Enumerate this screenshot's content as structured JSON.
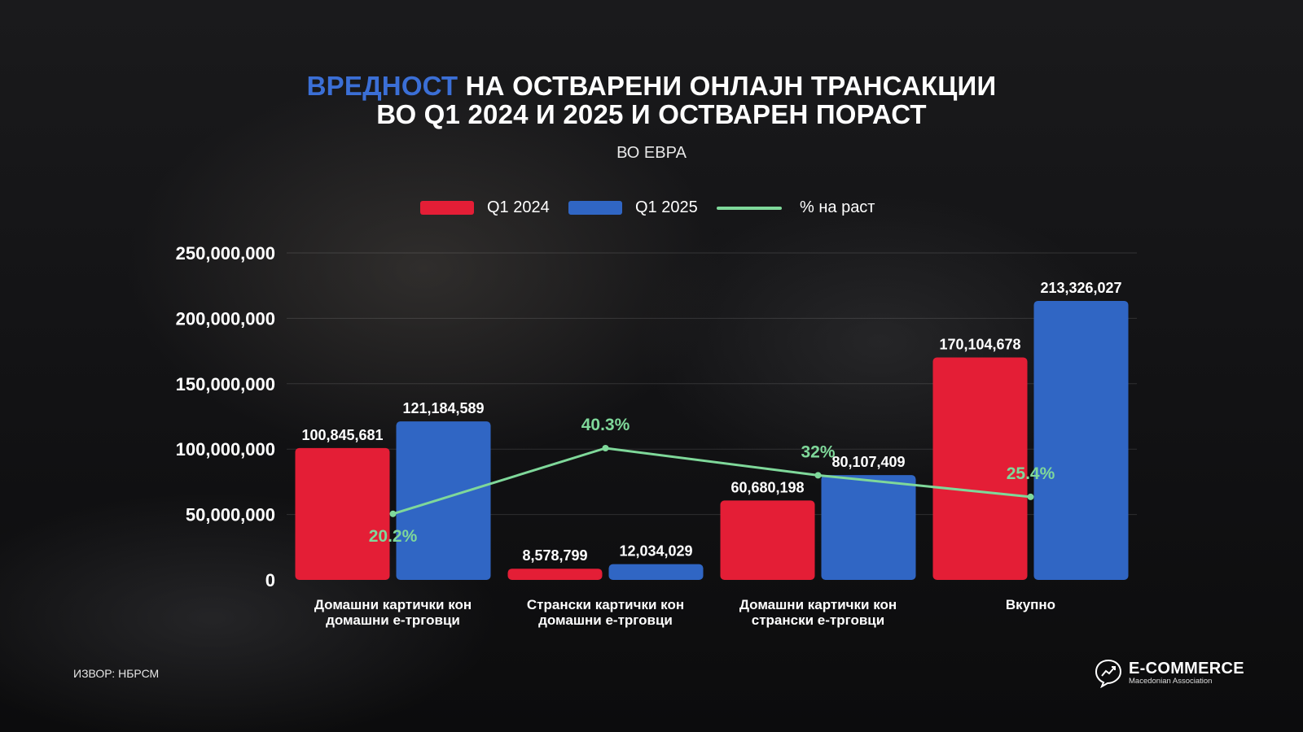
{
  "title": {
    "accent": "ВРЕДНОСТ",
    "line1_rest": " НА ОСТВАРЕНИ ОНЛАЈН ТРАНСАКЦИИ",
    "line2": "ВО Q1 2024 И 2025 И ОСТВАРЕН ПОРАСТ"
  },
  "subtitle": "ВО ЕВРА",
  "source": "ИЗВОР: НБРСМ",
  "logo": {
    "title": "E-COMMERCE",
    "subtitle": "Macedonian Association",
    "icon": "growth-chat-icon"
  },
  "colors": {
    "q1_2024": "#e41e36",
    "q1_2025": "#3066c4",
    "growth": "#7fd89a",
    "accent_title": "#3b6fd6"
  },
  "chart_data": {
    "type": "bar",
    "categories": [
      [
        "Домашни картички кон",
        "домашни е-трговци"
      ],
      [
        "Странски картички кон",
        "домашни е-трговци"
      ],
      [
        "Домашни картички кон",
        "странски е-трговци"
      ],
      [
        "Вкупно"
      ]
    ],
    "series": [
      {
        "name": "Q1 2024",
        "values": [
          100845681,
          8578799,
          60680198,
          170104678
        ],
        "labels": [
          "100,845,681",
          "8,578,799",
          "60,680,198",
          "170,104,678"
        ]
      },
      {
        "name": "Q1 2025",
        "values": [
          121184589,
          12034029,
          80107409,
          213326027
        ],
        "labels": [
          "121,184,589",
          "12,034,029",
          "80,107,409",
          "213,326,027"
        ]
      }
    ],
    "line_series": {
      "name": "% на раст",
      "values": [
        20.2,
        40.3,
        32,
        25.4
      ],
      "labels": [
        "20.2%",
        "40.3%",
        "32%",
        "25.4%"
      ]
    },
    "y_ticks": [
      {
        "value": 0,
        "label": "0"
      },
      {
        "value": 50000000,
        "label": "50,000,000"
      },
      {
        "value": 100000000,
        "label": "100,000,000"
      },
      {
        "value": 150000000,
        "label": "150,000,000"
      },
      {
        "value": 200000000,
        "label": "200,000,000"
      },
      {
        "value": 250000000,
        "label": "250,000,000"
      }
    ],
    "ylim": [
      0,
      250000000
    ],
    "grid": true,
    "legend_position": "top-center"
  }
}
